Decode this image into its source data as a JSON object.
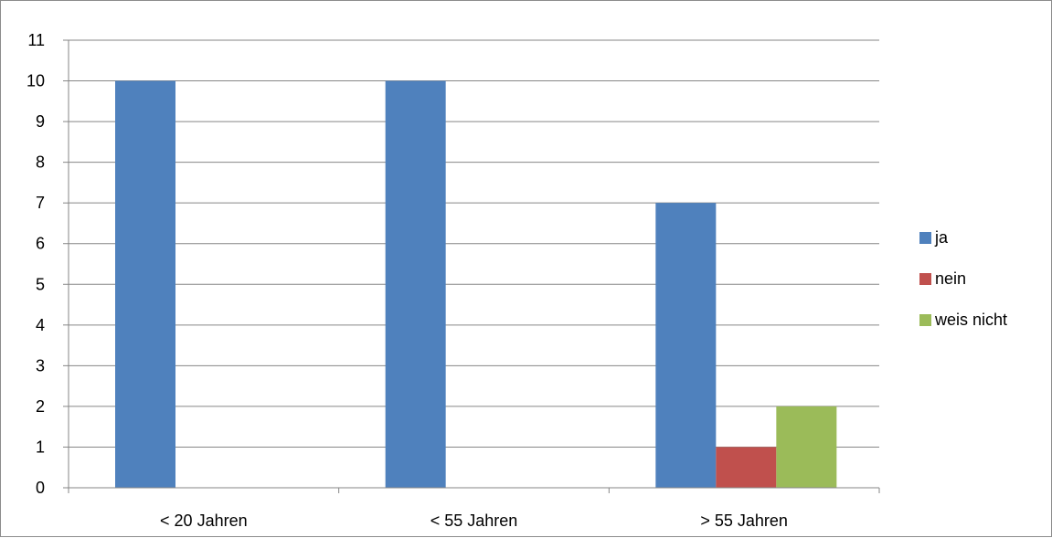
{
  "chart_data": {
    "type": "bar",
    "categories": [
      "< 20 Jahren",
      "< 55 Jahren",
      "> 55 Jahren"
    ],
    "series": [
      {
        "name": "ja",
        "values": [
          10,
          10,
          7
        ],
        "color": "#4f81bd"
      },
      {
        "name": "nein",
        "values": [
          0,
          0,
          1
        ],
        "color": "#c0504d"
      },
      {
        "name": "weis nicht",
        "values": [
          0,
          0,
          2
        ],
        "color": "#9bbb59"
      }
    ],
    "ylim": [
      0,
      11
    ],
    "yticks": [
      0,
      1,
      2,
      3,
      4,
      5,
      6,
      7,
      8,
      9,
      10,
      11
    ],
    "grid": true,
    "legend": "right"
  }
}
